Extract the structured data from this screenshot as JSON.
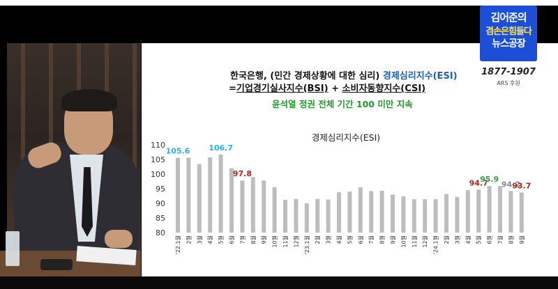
{
  "header": {
    "title_prefix": "한국은행, (민간 경제상황에 대한 심리) ",
    "title_esi": "경제심리지수(ESI)",
    "formula_eq": "=",
    "formula_bsi": "기업경기실사지수(BSI)",
    "formula_plus": " + ",
    "formula_csi": "소비자동향지수(CSI)",
    "subtitle": "윤석열 정권 전체 기간 100 미만 지속"
  },
  "logo": {
    "line1": "김어준의",
    "line2": "겸손은힘들다",
    "line3": "뉴스공장",
    "phone": "1877-1907",
    "ars": "ARS 후원"
  },
  "chart_data": {
    "type": "bar",
    "title": "경제심리지수(ESI)",
    "ylim": [
      80,
      110
    ],
    "yticks": [
      80,
      85,
      90,
      95,
      100,
      105,
      110
    ],
    "grid": false,
    "bar_color": "#bdbdbd",
    "categories": [
      "'22.1월",
      "2월",
      "3월",
      "4월",
      "5월",
      "6월",
      "7월",
      "8월",
      "9월",
      "10월",
      "11월",
      "12월",
      "'23.1월",
      "2월",
      "3월",
      "4월",
      "5월",
      "6월",
      "7월",
      "8월",
      "9월",
      "10월",
      "11월",
      "12월",
      "'24.1월",
      "2월",
      "3월",
      "4월",
      "5월",
      "6월",
      "7월",
      "8월",
      "9월"
    ],
    "values": [
      105.6,
      105.6,
      103.4,
      105.7,
      106.7,
      102.0,
      97.8,
      99.0,
      97.8,
      95.5,
      91.2,
      91.5,
      90.0,
      91.5,
      91.3,
      93.8,
      94.0,
      95.5,
      94.2,
      94.3,
      93.0,
      92.4,
      91.4,
      91.4,
      91.4,
      93.2,
      92.2,
      94.5,
      94.7,
      95.9,
      95.9,
      94.2,
      93.7
    ],
    "data_labels": [
      {
        "index": 0,
        "text": "105.6",
        "color": "#22b5e6"
      },
      {
        "index": 4,
        "text": "106.7",
        "color": "#22b5e6"
      },
      {
        "index": 6,
        "text": "97.8",
        "color": "#b02418"
      },
      {
        "index": 28,
        "text": "94.7",
        "color": "#b02418"
      },
      {
        "index": 29,
        "text": "95.9",
        "color": "#2ea043"
      },
      {
        "index": 31,
        "text": "94.2",
        "color": "#888888"
      },
      {
        "index": 32,
        "text": "93.7",
        "color": "#b02418"
      }
    ]
  }
}
